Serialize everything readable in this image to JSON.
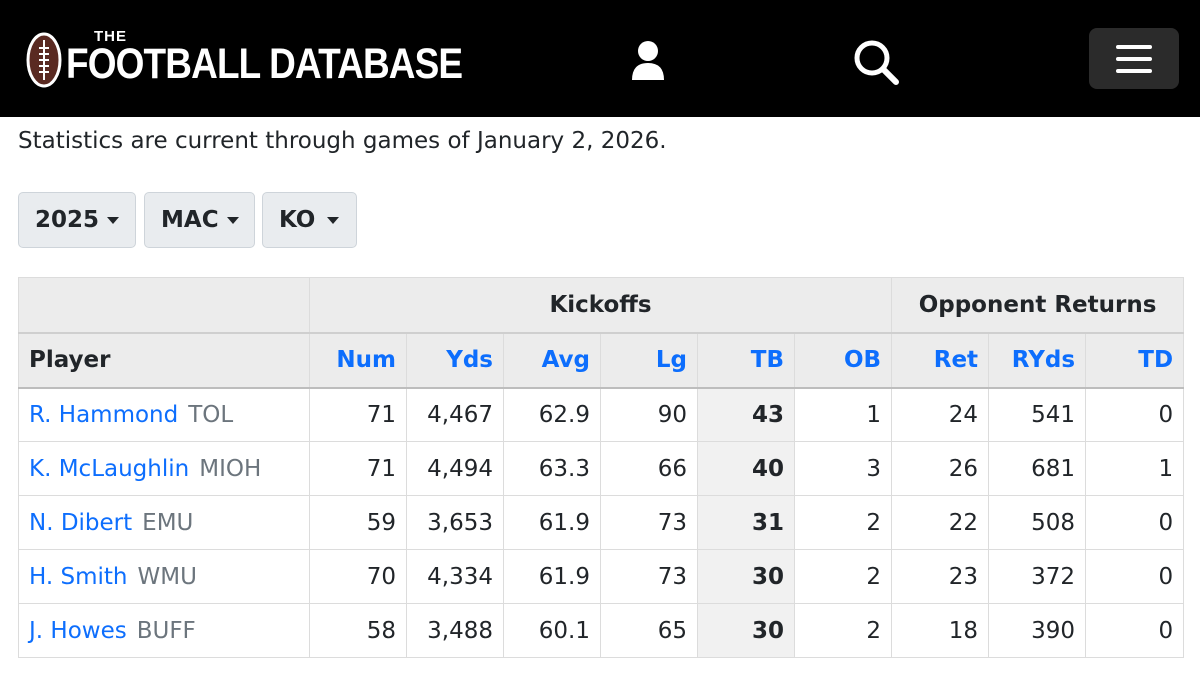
{
  "header": {
    "logo_the": "THE",
    "logo_text": "FOOTBALL DATABASE"
  },
  "status_text": "Statistics are current through games of January 2, 2026.",
  "filters": {
    "year": "2025",
    "conference": "MAC",
    "category": "KO"
  },
  "table": {
    "groups": {
      "kickoffs": "Kickoffs",
      "returns": "Opponent Returns"
    },
    "columns": {
      "player": "Player",
      "num": "Num",
      "yds": "Yds",
      "avg": "Avg",
      "lg": "Lg",
      "tb": "TB",
      "ob": "OB",
      "ret": "Ret",
      "ryds": "RYds",
      "td": "TD"
    },
    "rows": [
      {
        "name": "R. Hammond",
        "team": "TOL",
        "num": "71",
        "yds": "4,467",
        "avg": "62.9",
        "lg": "90",
        "tb": "43",
        "ob": "1",
        "ret": "24",
        "ryds": "541",
        "td": "0"
      },
      {
        "name": "K. McLaughlin",
        "team": "MIOH",
        "num": "71",
        "yds": "4,494",
        "avg": "63.3",
        "lg": "66",
        "tb": "40",
        "ob": "3",
        "ret": "26",
        "ryds": "681",
        "td": "1"
      },
      {
        "name": "N. Dibert",
        "team": "EMU",
        "num": "59",
        "yds": "3,653",
        "avg": "61.9",
        "lg": "73",
        "tb": "31",
        "ob": "2",
        "ret": "22",
        "ryds": "508",
        "td": "0"
      },
      {
        "name": "H. Smith",
        "team": "WMU",
        "num": "70",
        "yds": "4,334",
        "avg": "61.9",
        "lg": "73",
        "tb": "30",
        "ob": "2",
        "ret": "23",
        "ryds": "372",
        "td": "0"
      },
      {
        "name": "J. Howes",
        "team": "BUFF",
        "num": "58",
        "yds": "3,488",
        "avg": "60.1",
        "lg": "65",
        "tb": "30",
        "ob": "2",
        "ret": "18",
        "ryds": "390",
        "td": "0"
      }
    ]
  },
  "colors": {
    "link": "#0d6efd",
    "header_bg": "#000000",
    "table_header_bg": "#ececec"
  }
}
